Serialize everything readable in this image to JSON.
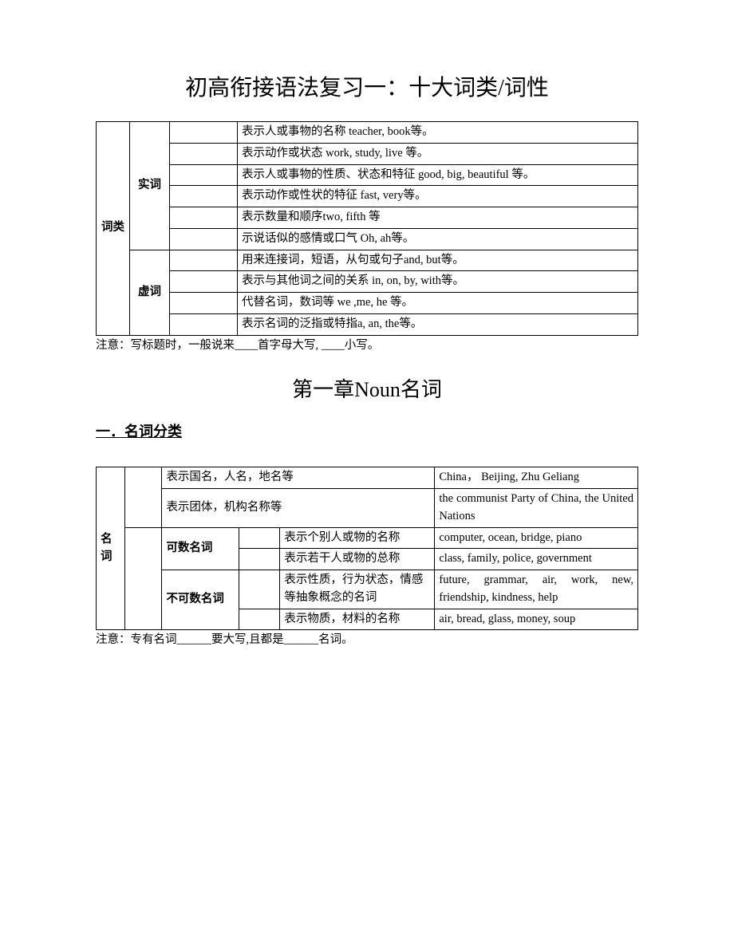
{
  "title_main": "初高衔接语法复习一：十大词类/词性",
  "title_chapter": "第一章Noun名词",
  "section_heading": "一．名词分类",
  "table1": {
    "left_label": "词类",
    "groups": [
      {
        "label": "实词",
        "rows": [
          "表示人或事物的名称  teacher, book等。",
          "表示动作或状态  work, study, live 等。",
          "表示人或事物的性质、状态和特征 good, big, beautiful 等。",
          "表示动作或性状的特征 fast, very等。",
          "表示数量和顺序two, fifth 等",
          "示说话似的感情或口气 Oh, ah等。"
        ]
      },
      {
        "label": "虚词",
        "rows": [
          "用来连接词，短语，从句或句子and, but等。",
          "表示与其他词之间的关系 in, on, by, with等。",
          "代替名词，数词等  we ,me, he 等。",
          "表示名词的泛指或特指a, an, the等。"
        ]
      }
    ]
  },
  "note1": "注意：写标题时，一般说来____首字母大写, ____小写。",
  "table2": {
    "left_label": "名词",
    "proper_rows": [
      {
        "desc": "表示国名，人名，地名等",
        "example": "China，   Beijing,   Zhu Geliang"
      },
      {
        "desc": "表示团体，机构名称等",
        "example": "the  communist  Party  of China,\nthe United Nations"
      }
    ],
    "countable": {
      "label": "可数名词",
      "rows": [
        {
          "desc": "表示个别人或物的名称",
          "example": "computer,  ocean,  bridge, piano"
        },
        {
          "desc": "表示若干人或物的总称",
          "example": "class,    family,    police, government"
        }
      ]
    },
    "uncountable": {
      "label": "不可数名词",
      "rows": [
        {
          "desc": "表示性质，行为状态，情感等抽象概念的名词",
          "example": "future, grammar, air, work, new,  friendship,  kindness, help"
        },
        {
          "desc": "表示物质，材料的名称",
          "example": "air,  bread,  glass,  money, soup"
        }
      ]
    }
  },
  "note2": "注意：专有名词______要大写,且都是______名词。"
}
